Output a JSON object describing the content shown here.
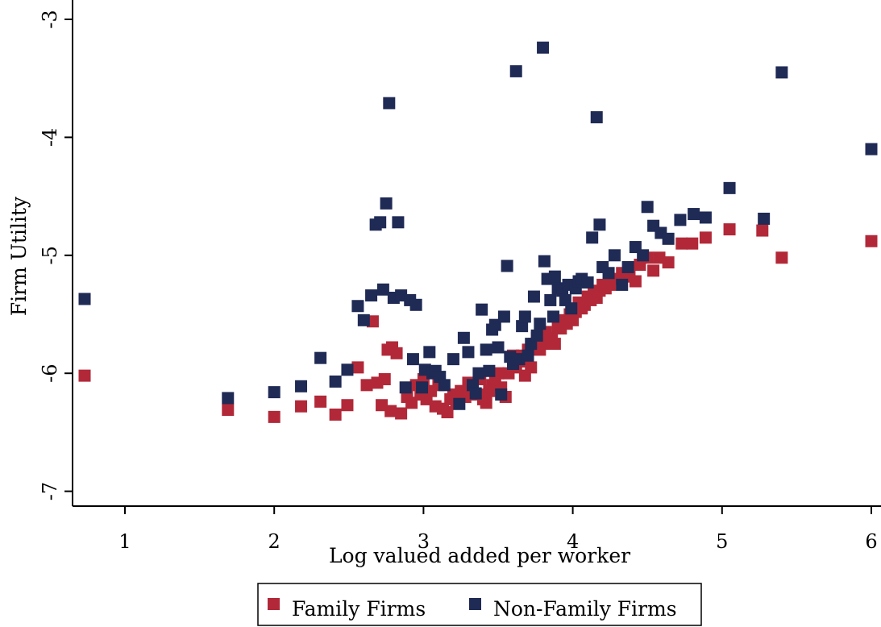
{
  "chart_data": {
    "type": "scatter",
    "title": "",
    "xlabel": "Log valued added per worker",
    "ylabel": "Firm Utility",
    "xlim": [
      0.65,
      6.05
    ],
    "ylim": [
      -7.12,
      -2.9
    ],
    "xticks": [
      1,
      2,
      3,
      4,
      5,
      6
    ],
    "yticks": [
      -7,
      -6,
      -5,
      -4,
      -3
    ],
    "grid": false,
    "legend_position": "bottom-center",
    "series": [
      {
        "name": "Family Firms",
        "color": "#b22838",
        "marker": "square",
        "points": [
          [
            0.73,
            -6.02
          ],
          [
            1.69,
            -6.31
          ],
          [
            2.0,
            -6.37
          ],
          [
            2.18,
            -6.28
          ],
          [
            2.31,
            -6.24
          ],
          [
            2.41,
            -6.35
          ],
          [
            2.49,
            -6.27
          ],
          [
            2.56,
            -5.95
          ],
          [
            2.62,
            -6.1
          ],
          [
            2.66,
            -5.56
          ],
          [
            2.69,
            -6.08
          ],
          [
            2.72,
            -6.27
          ],
          [
            2.74,
            -6.05
          ],
          [
            2.76,
            -5.8
          ],
          [
            2.78,
            -6.32
          ],
          [
            2.79,
            -5.78
          ],
          [
            2.82,
            -5.83
          ],
          [
            2.85,
            -6.34
          ],
          [
            2.89,
            -6.2
          ],
          [
            2.92,
            -6.25
          ],
          [
            2.95,
            -6.1
          ],
          [
            2.98,
            -6.18
          ],
          [
            3.0,
            -6.05
          ],
          [
            3.02,
            -6.22
          ],
          [
            3.05,
            -6.15
          ],
          [
            3.08,
            -6.28
          ],
          [
            3.1,
            -6.1
          ],
          [
            3.13,
            -6.3
          ],
          [
            3.16,
            -6.33
          ],
          [
            3.18,
            -6.22
          ],
          [
            3.2,
            -6.18
          ],
          [
            3.22,
            -6.25
          ],
          [
            3.25,
            -6.15
          ],
          [
            3.28,
            -6.2
          ],
          [
            3.3,
            -6.08
          ],
          [
            3.33,
            -6.12
          ],
          [
            3.36,
            -6.18
          ],
          [
            3.38,
            -6.05
          ],
          [
            3.4,
            -6.22
          ],
          [
            3.42,
            -6.25
          ],
          [
            3.44,
            -6.15
          ],
          [
            3.46,
            -6.1
          ],
          [
            3.48,
            -6.05
          ],
          [
            3.5,
            -6.0
          ],
          [
            3.52,
            -6.12
          ],
          [
            3.55,
            -6.2
          ],
          [
            3.57,
            -6.0
          ],
          [
            3.6,
            -5.85
          ],
          [
            3.62,
            -5.95
          ],
          [
            3.64,
            -5.9
          ],
          [
            3.66,
            -5.85
          ],
          [
            3.68,
            -6.02
          ],
          [
            3.7,
            -5.8
          ],
          [
            3.72,
            -5.95
          ],
          [
            3.74,
            -5.75
          ],
          [
            3.76,
            -5.7
          ],
          [
            3.78,
            -5.8
          ],
          [
            3.8,
            -5.75
          ],
          [
            3.82,
            -5.65
          ],
          [
            3.84,
            -5.72
          ],
          [
            3.86,
            -5.7
          ],
          [
            3.88,
            -5.75
          ],
          [
            3.9,
            -5.6
          ],
          [
            3.92,
            -5.62
          ],
          [
            3.94,
            -5.55
          ],
          [
            3.96,
            -5.58
          ],
          [
            3.98,
            -5.5
          ],
          [
            4.0,
            -5.55
          ],
          [
            4.02,
            -5.48
          ],
          [
            4.04,
            -5.4
          ],
          [
            4.06,
            -5.45
          ],
          [
            4.08,
            -5.42
          ],
          [
            4.1,
            -5.35
          ],
          [
            4.12,
            -5.38
          ],
          [
            4.14,
            -5.32
          ],
          [
            4.16,
            -5.36
          ],
          [
            4.18,
            -5.3
          ],
          [
            4.2,
            -5.25
          ],
          [
            4.22,
            -5.28
          ],
          [
            4.25,
            -5.25
          ],
          [
            4.28,
            -5.2
          ],
          [
            4.33,
            -5.15
          ],
          [
            4.38,
            -5.18
          ],
          [
            4.42,
            -5.22
          ],
          [
            4.45,
            -5.08
          ],
          [
            4.5,
            -5.02
          ],
          [
            4.54,
            -5.13
          ],
          [
            4.58,
            -5.02
          ],
          [
            4.64,
            -5.06
          ],
          [
            4.73,
            -4.9
          ],
          [
            4.8,
            -4.9
          ],
          [
            4.89,
            -4.85
          ],
          [
            5.05,
            -4.78
          ],
          [
            5.27,
            -4.79
          ],
          [
            5.4,
            -5.02
          ],
          [
            6.0,
            -4.88
          ]
        ]
      },
      {
        "name": "Non-Family Firms",
        "color": "#1f2a55",
        "marker": "square",
        "points": [
          [
            0.73,
            -5.37
          ],
          [
            1.69,
            -6.21
          ],
          [
            2.0,
            -6.16
          ],
          [
            2.18,
            -6.11
          ],
          [
            2.31,
            -5.87
          ],
          [
            2.41,
            -6.07
          ],
          [
            2.49,
            -5.97
          ],
          [
            2.56,
            -5.43
          ],
          [
            2.6,
            -5.55
          ],
          [
            2.65,
            -5.34
          ],
          [
            2.68,
            -4.74
          ],
          [
            2.71,
            -4.72
          ],
          [
            2.73,
            -5.29
          ],
          [
            2.75,
            -4.56
          ],
          [
            2.77,
            -3.71
          ],
          [
            2.8,
            -5.36
          ],
          [
            2.83,
            -4.72
          ],
          [
            2.85,
            -5.34
          ],
          [
            2.88,
            -6.12
          ],
          [
            2.91,
            -5.38
          ],
          [
            2.93,
            -5.88
          ],
          [
            2.95,
            -5.42
          ],
          [
            2.99,
            -6.12
          ],
          [
            3.01,
            -5.97
          ],
          [
            3.04,
            -5.82
          ],
          [
            3.06,
            -6.0
          ],
          [
            3.08,
            -5.98
          ],
          [
            3.11,
            -6.03
          ],
          [
            3.14,
            -6.1
          ],
          [
            3.2,
            -5.88
          ],
          [
            3.24,
            -6.26
          ],
          [
            3.27,
            -5.7
          ],
          [
            3.3,
            -5.82
          ],
          [
            3.33,
            -6.1
          ],
          [
            3.35,
            -6.17
          ],
          [
            3.37,
            -6.0
          ],
          [
            3.39,
            -5.46
          ],
          [
            3.42,
            -5.8
          ],
          [
            3.44,
            -5.98
          ],
          [
            3.46,
            -5.63
          ],
          [
            3.48,
            -5.59
          ],
          [
            3.5,
            -5.78
          ],
          [
            3.52,
            -6.18
          ],
          [
            3.54,
            -5.52
          ],
          [
            3.56,
            -5.09
          ],
          [
            3.58,
            -5.86
          ],
          [
            3.6,
            -5.92
          ],
          [
            3.62,
            -3.44
          ],
          [
            3.64,
            -5.88
          ],
          [
            3.66,
            -5.6
          ],
          [
            3.68,
            -5.52
          ],
          [
            3.7,
            -5.85
          ],
          [
            3.72,
            -5.75
          ],
          [
            3.74,
            -5.35
          ],
          [
            3.76,
            -5.68
          ],
          [
            3.78,
            -5.58
          ],
          [
            3.8,
            -3.24
          ],
          [
            3.81,
            -5.05
          ],
          [
            3.83,
            -5.2
          ],
          [
            3.85,
            -5.38
          ],
          [
            3.87,
            -5.52
          ],
          [
            3.88,
            -5.18
          ],
          [
            3.9,
            -5.28
          ],
          [
            3.93,
            -5.3
          ],
          [
            3.95,
            -5.38
          ],
          [
            3.97,
            -5.25
          ],
          [
            3.99,
            -5.45
          ],
          [
            4.02,
            -5.28
          ],
          [
            4.04,
            -5.22
          ],
          [
            4.06,
            -5.2
          ],
          [
            4.1,
            -5.23
          ],
          [
            4.13,
            -4.85
          ],
          [
            4.16,
            -3.83
          ],
          [
            4.18,
            -4.74
          ],
          [
            4.2,
            -5.1
          ],
          [
            4.24,
            -5.15
          ],
          [
            4.28,
            -5.0
          ],
          [
            4.33,
            -5.25
          ],
          [
            4.37,
            -5.1
          ],
          [
            4.42,
            -4.93
          ],
          [
            4.47,
            -5.0
          ],
          [
            4.5,
            -4.59
          ],
          [
            4.54,
            -4.75
          ],
          [
            4.59,
            -4.81
          ],
          [
            4.64,
            -4.86
          ],
          [
            4.72,
            -4.7
          ],
          [
            4.81,
            -4.65
          ],
          [
            4.89,
            -4.68
          ],
          [
            5.05,
            -4.43
          ],
          [
            5.28,
            -4.69
          ],
          [
            5.4,
            -3.45
          ],
          [
            6.0,
            -4.1
          ]
        ]
      }
    ]
  }
}
